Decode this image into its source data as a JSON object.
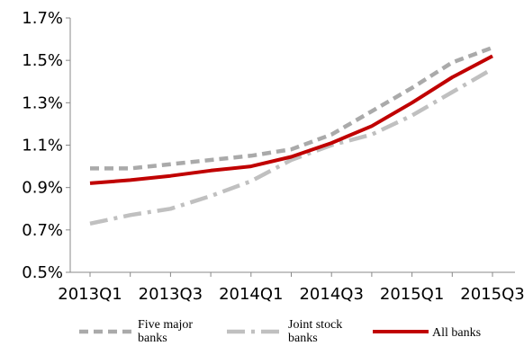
{
  "chart_data": {
    "type": "line",
    "title": "",
    "xlabel": "",
    "ylabel": "",
    "x": [
      "2013Q1",
      "2013Q2",
      "2013Q3",
      "2013Q4",
      "2014Q1",
      "2014Q2",
      "2014Q3",
      "2014Q4",
      "2015Q1",
      "2015Q2",
      "2015Q3"
    ],
    "x_tick_labels": [
      "2013Q1",
      "2013Q3",
      "2014Q1",
      "2014Q3",
      "2015Q1",
      "2015Q3"
    ],
    "y_tick_labels": [
      "1.7%",
      "1.5%",
      "1.3%",
      "1.1%",
      "0.9%",
      "0.7%",
      "0.5%"
    ],
    "ylim": [
      0.5,
      1.7
    ],
    "y_unit": "%",
    "grid": false,
    "legend_position": "bottom",
    "series": [
      {
        "name": "Five major banks",
        "color": "#aaaaaa",
        "style": "dashed",
        "values": [
          0.99,
          0.99,
          1.01,
          1.03,
          1.05,
          1.08,
          1.15,
          1.26,
          1.37,
          1.49,
          1.56
        ]
      },
      {
        "name": "Joint stock banks",
        "color": "#c0c0c0",
        "style": "dash-dot",
        "values": [
          0.73,
          0.77,
          0.8,
          0.86,
          0.93,
          1.03,
          1.1,
          1.15,
          1.24,
          1.35,
          1.46
        ]
      },
      {
        "name": "All banks",
        "color": "#c00000",
        "style": "solid",
        "values": [
          0.92,
          0.935,
          0.955,
          0.98,
          1.0,
          1.045,
          1.11,
          1.19,
          1.3,
          1.42,
          1.52
        ]
      }
    ]
  },
  "legend": {
    "items": [
      {
        "line1": "Five major",
        "line2": "banks"
      },
      {
        "line1": "Joint stock",
        "line2": "banks"
      },
      {
        "line1": "All banks",
        "line2": ""
      }
    ]
  }
}
